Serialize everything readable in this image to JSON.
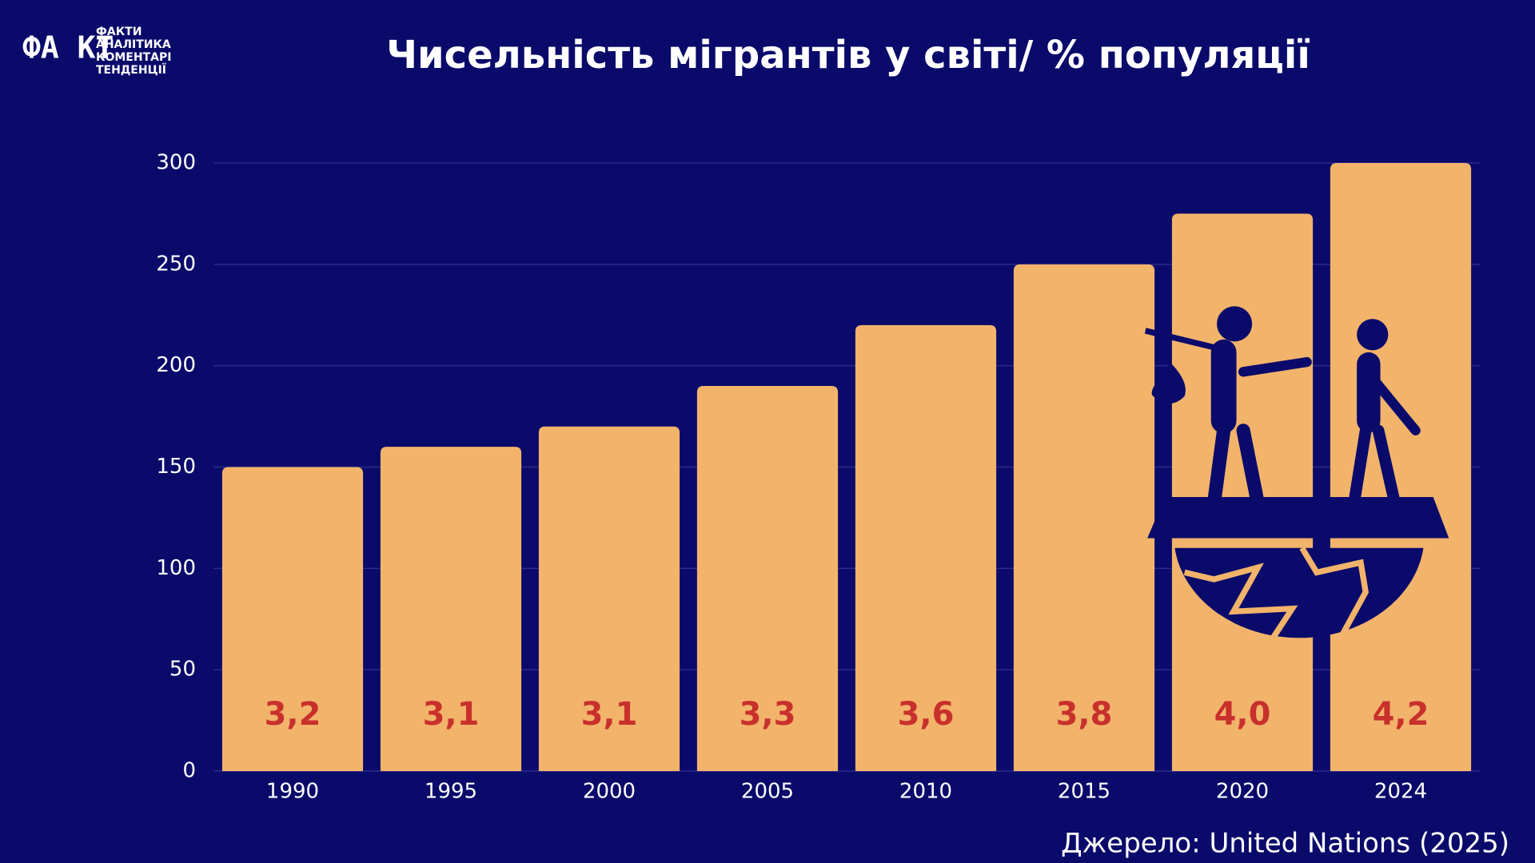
{
  "logo": {
    "mark": "ФА КТ",
    "lines": [
      "ФАКТИ",
      "АНАЛІТИКА",
      "КОМЕНТАРІ",
      "ТЕНДЕНЦІЇ"
    ]
  },
  "chart_data": {
    "type": "bar",
    "title": "Чисельність мігрантів у світі/ % популяції",
    "categories": [
      "1990",
      "1995",
      "2000",
      "2005",
      "2010",
      "2015",
      "2020",
      "2024"
    ],
    "values": [
      150,
      160,
      170,
      190,
      220,
      250,
      275,
      300
    ],
    "annotations": [
      "3,2",
      "3,1",
      "3,1",
      "3,3",
      "3,6",
      "3,8",
      "4,0",
      "4,2"
    ],
    "color": "#f2b36b",
    "annotation_color": "#c8302c",
    "ylim": [
      0,
      300
    ],
    "yticks": [
      0,
      50,
      100,
      150,
      200,
      250,
      300
    ],
    "grid": true,
    "source": "Джерело: United Nations (2025)"
  }
}
